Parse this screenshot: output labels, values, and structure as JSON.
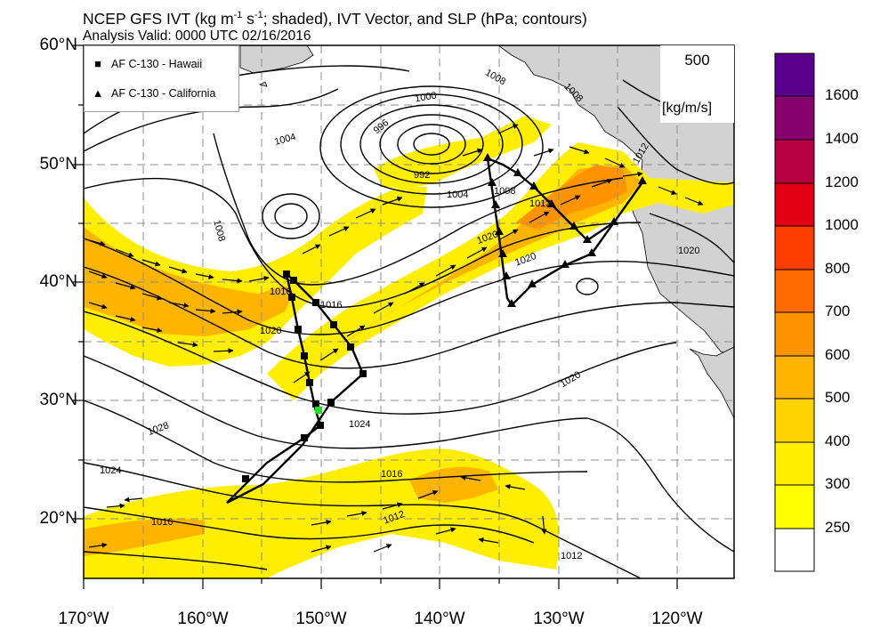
{
  "title": {
    "line1_prefix": "NCEP GFS IVT (kg m",
    "exp1": "-1",
    "line1_mid": " s",
    "exp2": "-1",
    "line1_suffix": "; shaded), IVT Vector, and SLP (hPa; contours)",
    "line2": "Analysis Valid: 0000 UTC 02/16/2016"
  },
  "legend": {
    "hawaii": {
      "symbol": "■",
      "label": "AF C-130 - Hawaii"
    },
    "california": {
      "symbol": "▲",
      "label": "AF C-130 - California"
    }
  },
  "reference_vector": {
    "value": "500",
    "unit": "[kg/m/s]"
  },
  "lat_labels": [
    "60°N",
    "50°N",
    "40°N",
    "30°N",
    "20°N"
  ],
  "lon_labels": [
    "170°W",
    "160°W",
    "150°W",
    "140°W",
    "130°W",
    "120°W"
  ],
  "colorbar": {
    "labels": [
      "1600",
      "1400",
      "1200",
      "1000",
      "800",
      "700",
      "600",
      "500",
      "400",
      "300",
      "250"
    ],
    "colors": [
      "#5a0090",
      "#880070",
      "#b80040",
      "#e40014",
      "#ff3c00",
      "#ff6a00",
      "#ff9400",
      "#ffb400",
      "#ffd300",
      "#ffee00",
      "#ffff00",
      "#ffffff"
    ]
  },
  "slp_contour_labels": [
    "1000",
    "996",
    "992",
    "1004",
    "1004",
    "1008",
    "1008",
    "1008",
    "1008",
    "1012",
    "1012",
    "1012",
    "1012",
    "1016",
    "1016",
    "1016",
    "1016",
    "1020",
    "1020",
    "1020",
    "1020",
    "1020",
    "1024",
    "1024",
    "1028"
  ],
  "colors": {
    "land": "#d2d2d2",
    "grid": "#8c8c8c",
    "flight_track": "#000000",
    "marker_highlight": "#22dd22"
  }
}
